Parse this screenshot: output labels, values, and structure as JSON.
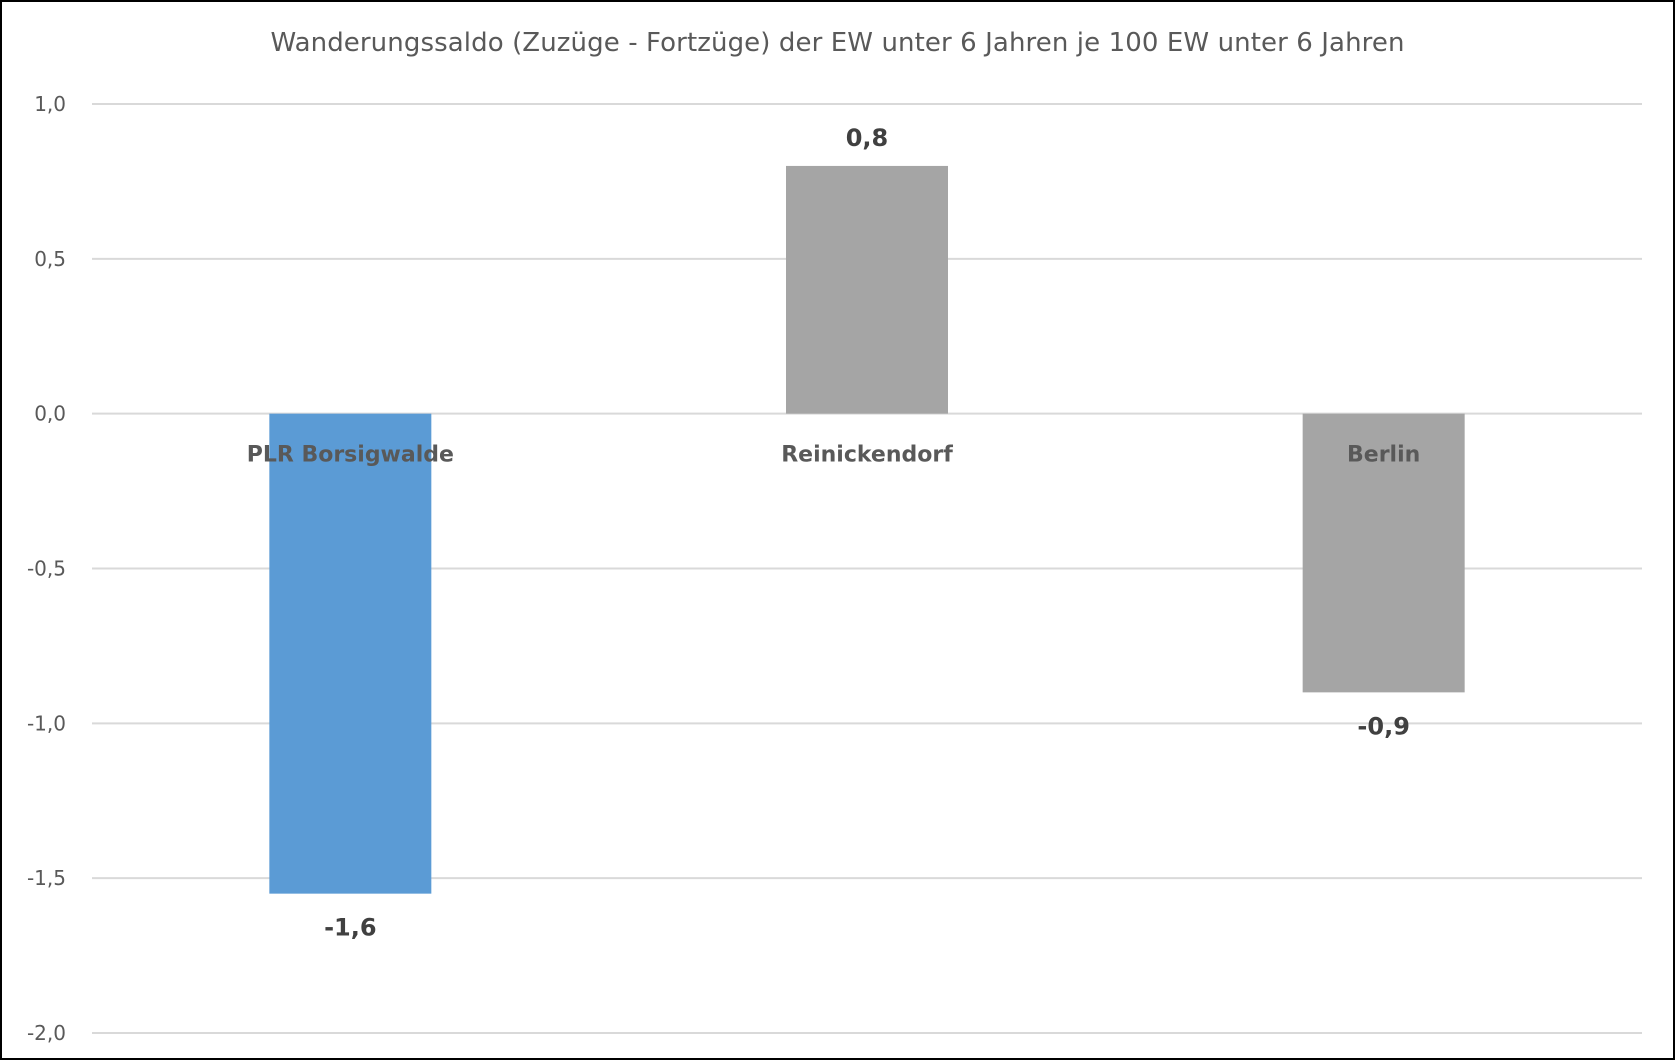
{
  "chart_data": {
    "type": "bar",
    "title": "Wanderungssaldo (Zuzüge - Fortzüge) der EW unter 6 Jahren je 100 EW unter 6 Jahren",
    "xlabel": "",
    "ylabel": "",
    "categories": [
      "PLR Borsigwalde",
      "Reinickendorf",
      "Berlin"
    ],
    "values": [
      -1.55,
      0.8,
      -0.9
    ],
    "data_labels": [
      "-1,6",
      "0,8",
      "-0,9"
    ],
    "bar_colors": [
      "#5b9bd5",
      "#a5a5a5",
      "#a5a5a5"
    ],
    "ylim": [
      -2.0,
      1.0
    ],
    "yticks": [
      1.0,
      0.5,
      0.0,
      -0.5,
      -1.0,
      -1.5,
      -2.0
    ],
    "ytick_labels": [
      "1,0",
      "0,5",
      "0,0",
      "-0,5",
      "-1,0",
      "-1,5",
      "-2,0"
    ],
    "grid": true,
    "legend": "none",
    "gridline_color": "#d9d9d9",
    "border_color": "#000000"
  }
}
